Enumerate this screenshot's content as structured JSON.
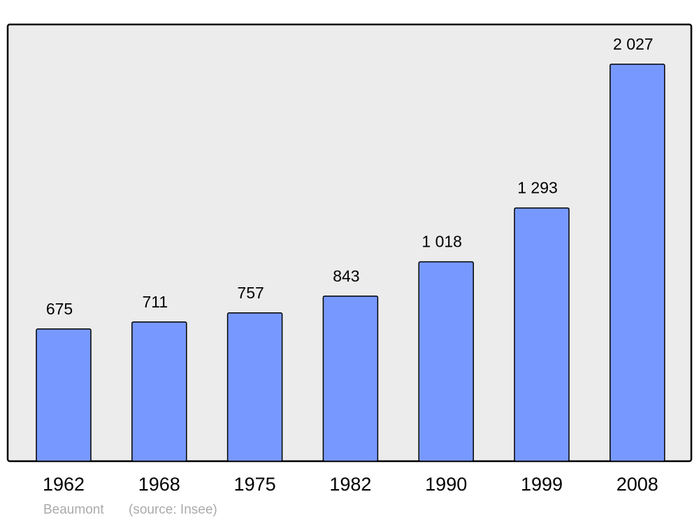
{
  "chart_data": {
    "type": "bar",
    "title": "Beaumont",
    "subtitle": "(source: Insee)",
    "categories": [
      "1962",
      "1968",
      "1975",
      "1982",
      "1990",
      "1999",
      "2008"
    ],
    "values": [
      675,
      711,
      757,
      843,
      1018,
      1293,
      2027
    ],
    "value_labels": [
      "675",
      "711",
      "757",
      "843",
      "1 018",
      "1 293",
      "2 027"
    ],
    "color": "#7799ff"
  }
}
